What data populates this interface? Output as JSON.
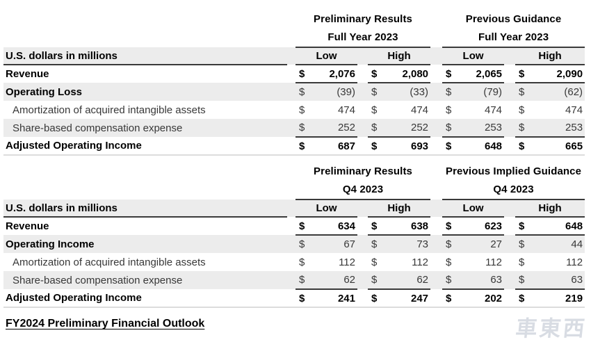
{
  "colors": {
    "row_shade": "#ececec",
    "rule_dark": "#3a3a3a",
    "rule_light": "#dcdcdc",
    "text_bold": "#000000",
    "text_regular": "#383838",
    "watermark": "#d8dce3"
  },
  "currency": "$",
  "tables": [
    {
      "name": "full-year-2023",
      "groups": [
        {
          "title": "Preliminary Results",
          "period": "Full Year 2023"
        },
        {
          "title": "Previous Guidance",
          "period": "Full Year 2023"
        }
      ],
      "unit_label": "U.S. dollars in millions",
      "column_headers": [
        "Low",
        "High",
        "Low",
        "High"
      ],
      "rows": [
        {
          "label": "Revenue",
          "values": [
            "2,076",
            "2,080",
            "2,065",
            "2,090"
          ],
          "label_bold": true,
          "values_bold": true,
          "shaded": false,
          "underline_after": true,
          "indent": false
        },
        {
          "label": "Operating Loss",
          "values": [
            "(39)",
            "(33)",
            "(79)",
            "(62)"
          ],
          "label_bold": true,
          "values_bold": false,
          "shaded": true,
          "underline_after": false,
          "indent": false
        },
        {
          "label": "Amortization of acquired intangible assets",
          "values": [
            "474",
            "474",
            "474",
            "474"
          ],
          "label_bold": false,
          "values_bold": false,
          "shaded": false,
          "underline_after": false,
          "indent": true
        },
        {
          "label": "Share-based compensation expense",
          "values": [
            "252",
            "252",
            "253",
            "253"
          ],
          "label_bold": false,
          "values_bold": false,
          "shaded": true,
          "underline_after": true,
          "indent": true
        },
        {
          "label": "Adjusted Operating Income",
          "values": [
            "687",
            "693",
            "648",
            "665"
          ],
          "label_bold": true,
          "values_bold": true,
          "shaded": false,
          "underline_after": false,
          "indent": false
        }
      ]
    },
    {
      "name": "q4-2023",
      "groups": [
        {
          "title": "Preliminary Results",
          "period": "Q4 2023"
        },
        {
          "title": "Previous Implied Guidance",
          "period": "Q4 2023"
        }
      ],
      "unit_label": "U.S. dollars in millions",
      "column_headers": [
        "Low",
        "High",
        "Low",
        "High"
      ],
      "rows": [
        {
          "label": "Revenue",
          "values": [
            "634",
            "638",
            "623",
            "648"
          ],
          "label_bold": true,
          "values_bold": true,
          "shaded": false,
          "underline_after": true,
          "indent": false
        },
        {
          "label": "Operating Income",
          "values": [
            "67",
            "73",
            "27",
            "44"
          ],
          "label_bold": true,
          "values_bold": false,
          "shaded": true,
          "underline_after": false,
          "indent": false
        },
        {
          "label": "Amortization of acquired intangible assets",
          "values": [
            "112",
            "112",
            "112",
            "112"
          ],
          "label_bold": false,
          "values_bold": false,
          "shaded": false,
          "underline_after": false,
          "indent": true
        },
        {
          "label": "Share-based compensation expense",
          "values": [
            "62",
            "62",
            "63",
            "63"
          ],
          "label_bold": false,
          "values_bold": false,
          "shaded": true,
          "underline_after": true,
          "indent": true
        },
        {
          "label": "Adjusted Operating Income",
          "values": [
            "241",
            "247",
            "202",
            "219"
          ],
          "label_bold": true,
          "values_bold": true,
          "shaded": false,
          "underline_after": false,
          "indent": false
        }
      ]
    }
  ],
  "footer": {
    "heading": "FY2024 Preliminary Financial Outlook"
  },
  "watermark": {
    "text": "車東西"
  }
}
